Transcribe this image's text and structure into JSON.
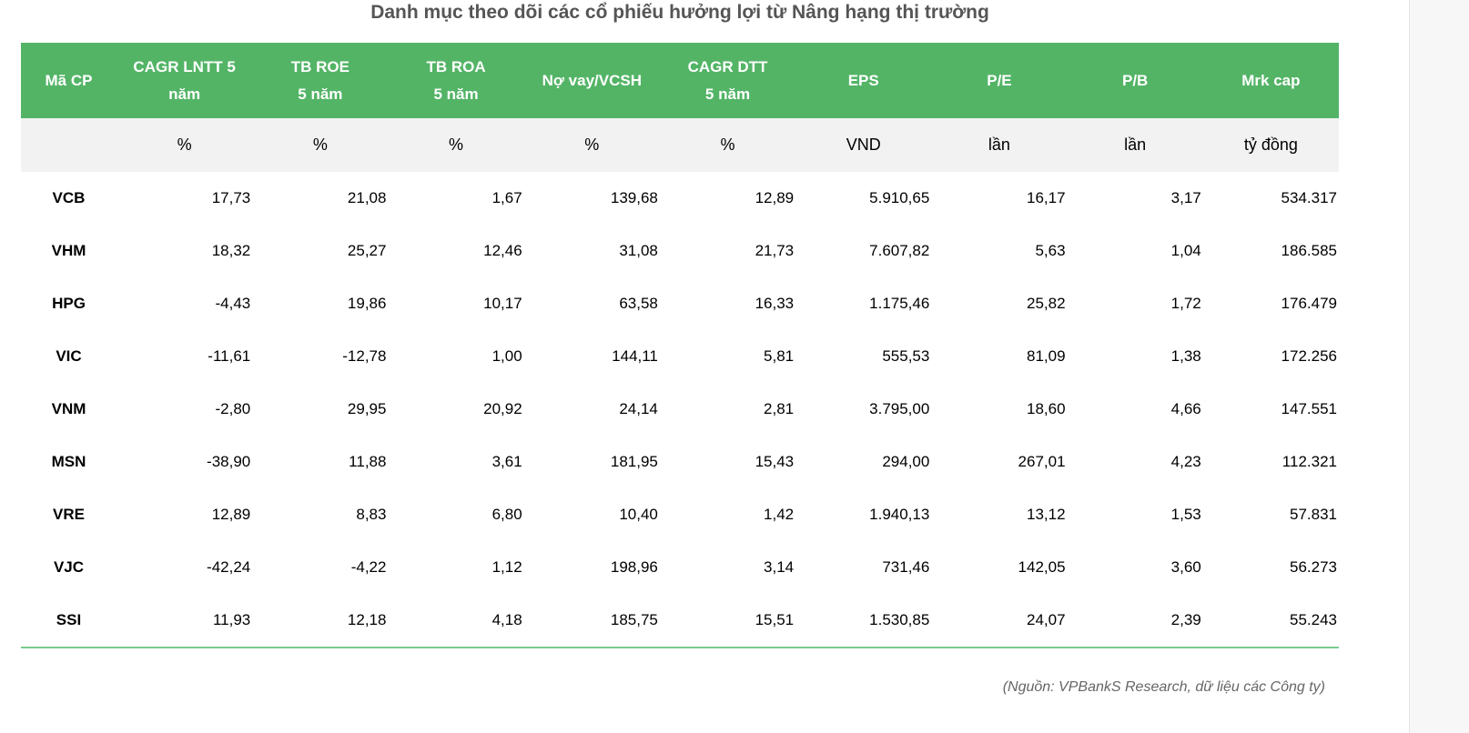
{
  "title": "Danh mục theo dõi các cổ phiếu hưởng lợi từ Nâng hạng thị trường",
  "columns": [
    {
      "label": "Mã CP",
      "label2": "",
      "unit": ""
    },
    {
      "label": "CAGR LNTT 5",
      "label2": "năm",
      "unit": "%"
    },
    {
      "label": "TB ROE",
      "label2": "5 năm",
      "unit": "%"
    },
    {
      "label": "TB ROA",
      "label2": "5 năm",
      "unit": "%"
    },
    {
      "label": "Nợ vay/VCSH",
      "label2": "",
      "unit": "%"
    },
    {
      "label": "CAGR DTT",
      "label2": "5 năm",
      "unit": "%"
    },
    {
      "label": "EPS",
      "label2": "",
      "unit": "VND"
    },
    {
      "label": "P/E",
      "label2": "",
      "unit": "lần"
    },
    {
      "label": "P/B",
      "label2": "",
      "unit": "lần"
    },
    {
      "label": "Mrk cap",
      "label2": "",
      "unit": "tỷ đồng"
    }
  ],
  "rows": [
    [
      "VCB",
      "17,73",
      "21,08",
      "1,67",
      "139,68",
      "12,89",
      "5.910,65",
      "16,17",
      "3,17",
      "534.317"
    ],
    [
      "VHM",
      "18,32",
      "25,27",
      "12,46",
      "31,08",
      "21,73",
      "7.607,82",
      "5,63",
      "1,04",
      "186.585"
    ],
    [
      "HPG",
      "-4,43",
      "19,86",
      "10,17",
      "63,58",
      "16,33",
      "1.175,46",
      "25,82",
      "1,72",
      "176.479"
    ],
    [
      "VIC",
      "-11,61",
      "-12,78",
      "1,00",
      "144,11",
      "5,81",
      "555,53",
      "81,09",
      "1,38",
      "172.256"
    ],
    [
      "VNM",
      "-2,80",
      "29,95",
      "20,92",
      "24,14",
      "2,81",
      "3.795,00",
      "18,60",
      "4,66",
      "147.551"
    ],
    [
      "MSN",
      "-38,90",
      "11,88",
      "3,61",
      "181,95",
      "15,43",
      "294,00",
      "267,01",
      "4,23",
      "112.321"
    ],
    [
      "VRE",
      "12,89",
      "8,83",
      "6,80",
      "10,40",
      "1,42",
      "1.940,13",
      "13,12",
      "1,53",
      "57.831"
    ],
    [
      "VJC",
      "-42,24",
      "-4,22",
      "1,12",
      "198,96",
      "3,14",
      "731,46",
      "142,05",
      "3,60",
      "56.273"
    ],
    [
      "SSI",
      "11,93",
      "12,18",
      "4,18",
      "185,75",
      "15,51",
      "1.530,85",
      "24,07",
      "2,39",
      "55.243"
    ]
  ],
  "source": "(Nguồn: VPBankS Research, dữ liệu các Công ty)",
  "colors": {
    "header_bg": "#53b466",
    "unit_row_bg": "#f2f2f2",
    "bottom_rule": "#7cc98b"
  }
}
